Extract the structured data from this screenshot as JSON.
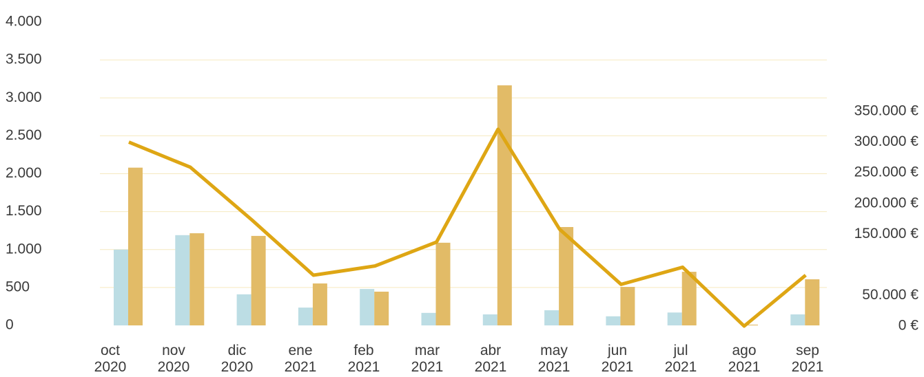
{
  "chart_data": {
    "type": "bar",
    "categories": [
      "oct 2020",
      "nov 2020",
      "dic 2020",
      "ene 2021",
      "feb 2021",
      "mar 2021",
      "abr 2021",
      "may 2021",
      "jun 2021",
      "jul 2021",
      "ago 2021",
      "sep 2021"
    ],
    "series": [
      {
        "type": "bar",
        "color": "#bcdde4",
        "values": [
          1000,
          1190,
          410,
          235,
          480,
          165,
          145,
          200,
          120,
          170,
          0,
          145
        ]
      },
      {
        "type": "bar",
        "color": "#e2bb67",
        "values": [
          2080,
          1215,
          1180,
          553,
          445,
          1090,
          3165,
          1297,
          508,
          707,
          10,
          608
        ]
      },
      {
        "type": "line",
        "axis": "y2",
        "color": "#dea614",
        "values": [
          300000,
          259000,
          173000,
          83000,
          98000,
          137000,
          321000,
          158000,
          68000,
          96000,
          0,
          83000
        ]
      }
    ],
    "ylim": [
      0,
      4000
    ],
    "yticks": [
      0,
      500,
      {
        "value": 1000,
        "label": "1.000"
      },
      {
        "value": 1500,
        "label": "1.500"
      },
      {
        "value": 2000,
        "label": "2.000"
      },
      {
        "value": 2500,
        "label": "2.500"
      },
      {
        "value": 3000,
        "label": "3.000"
      },
      {
        "value": 3500,
        "label": "3.500"
      },
      {
        "value": 4000,
        "label": "4.000"
      }
    ],
    "y2lim": [
      0,
      350000
    ],
    "y2ticks": [
      {
        "value": 0,
        "label": "0 €"
      },
      {
        "value": 50000,
        "label": "50.000 €"
      },
      {
        "value": 150000,
        "label": "150.000 €"
      },
      {
        "value": 200000,
        "label": "200.000 €"
      },
      {
        "value": 250000,
        "label": "250.000 €"
      },
      {
        "value": 300000,
        "label": "300.000 €"
      },
      {
        "value": 350000,
        "label": "350.000 €"
      }
    ],
    "grid": true
  }
}
